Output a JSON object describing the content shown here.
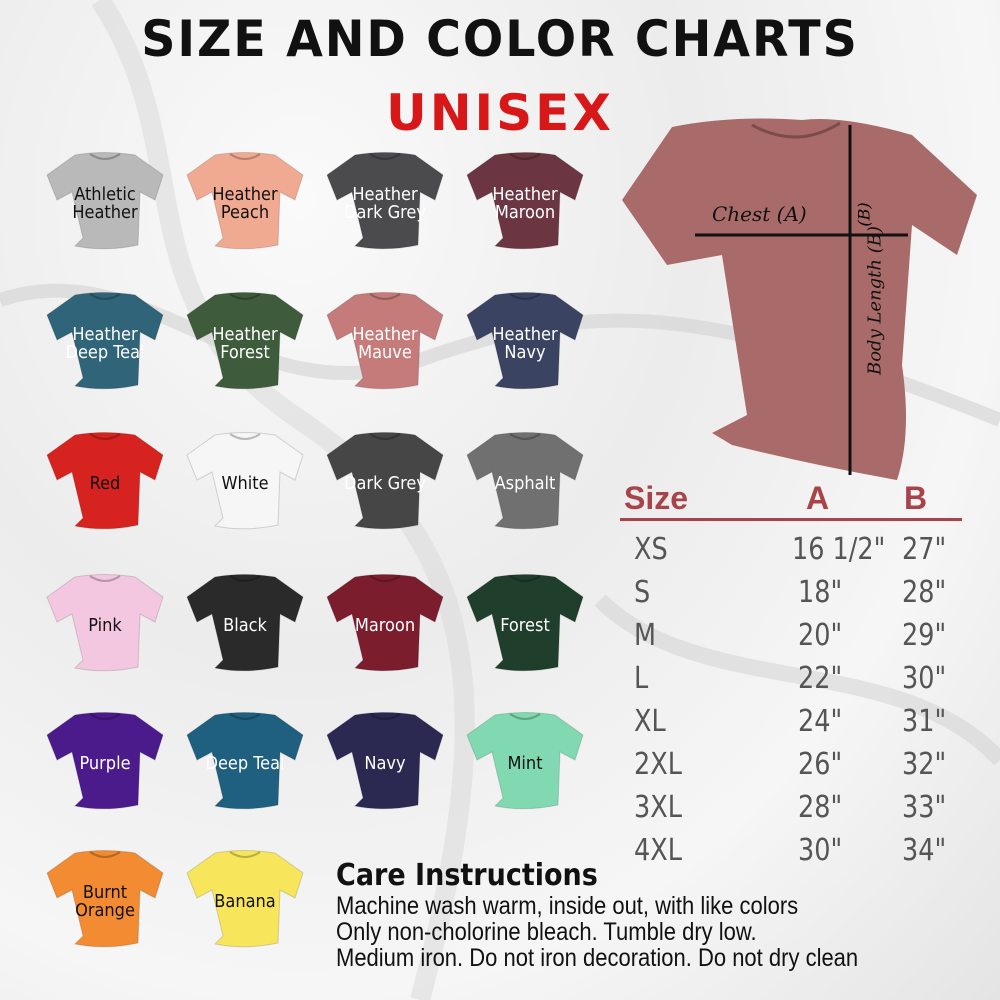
{
  "header": {
    "title": "SIZE AND COLOR CHARTS",
    "subtitle": "UNISEX"
  },
  "colors": [
    {
      "label": "Athletic Heather",
      "hex": "#b9b9b9",
      "text": "#111111"
    },
    {
      "label": "Heather Peach",
      "hex": "#f1aa92",
      "text": "#111111"
    },
    {
      "label": "Heather Dark Grey",
      "hex": "#4b4b4e",
      "text": "#ffffff"
    },
    {
      "label": "Heather Maroon",
      "hex": "#6b3542",
      "text": "#ffffff"
    },
    {
      "label": "Heather Deep Teal",
      "hex": "#2f6479",
      "text": "#ffffff"
    },
    {
      "label": "Heather Forest",
      "hex": "#3e5b3b",
      "text": "#ffffff"
    },
    {
      "label": "Heather Mauve",
      "hex": "#c57b79",
      "text": "#ffffff"
    },
    {
      "label": "Heather Navy",
      "hex": "#3b4362",
      "text": "#ffffff"
    },
    {
      "label": "Red",
      "hex": "#d7231f",
      "text": "#111111"
    },
    {
      "label": "White",
      "hex": "#f6f6f6",
      "text": "#111111"
    },
    {
      "label": "Dark Grey",
      "hex": "#464646",
      "text": "#ffffff"
    },
    {
      "label": "Asphalt",
      "hex": "#707070",
      "text": "#ffffff"
    },
    {
      "label": "Pink",
      "hex": "#f4c7e1",
      "text": "#111111"
    },
    {
      "label": "Black",
      "hex": "#2a2a2a",
      "text": "#ffffff"
    },
    {
      "label": "Maroon",
      "hex": "#7b1d2d",
      "text": "#ffffff"
    },
    {
      "label": "Forest",
      "hex": "#1f3e2b",
      "text": "#ffffff"
    },
    {
      "label": "Purple",
      "hex": "#4b1b8c",
      "text": "#ffffff"
    },
    {
      "label": "Deep Teal",
      "hex": "#1f5f7f",
      "text": "#ffffff"
    },
    {
      "label": "Navy",
      "hex": "#2b2952",
      "text": "#ffffff"
    },
    {
      "label": "Mint",
      "hex": "#80d9b1",
      "text": "#111111"
    },
    {
      "label": "Burnt Orange",
      "hex": "#f28b31",
      "text": "#111111"
    },
    {
      "label": "Banana",
      "hex": "#f7e65b",
      "text": "#111111"
    }
  ],
  "diagram": {
    "shirt_color": "#a86b69",
    "chest_label": "Chest (A)",
    "length_label": "Body Length (B)",
    "b_mark": "(B)"
  },
  "size_table": {
    "headers": [
      "Size",
      "A",
      "B"
    ],
    "accent": "#a8434a",
    "rows": [
      [
        "XS",
        "16 1/2\"",
        "27\""
      ],
      [
        "S",
        "18\"",
        "28\""
      ],
      [
        "M",
        "20\"",
        "29\""
      ],
      [
        "L",
        "22\"",
        "30\""
      ],
      [
        "XL",
        "24\"",
        "31\""
      ],
      [
        "2XL",
        "26\"",
        "32\""
      ],
      [
        "3XL",
        "28\"",
        "33\""
      ],
      [
        "4XL",
        "30\"",
        "34\""
      ]
    ]
  },
  "care": {
    "title": "Care Instructions",
    "lines": [
      "Machine wash warm, inside out, with like colors",
      "Only non-cholorine bleach. Tumble dry low.",
      "Medium iron. Do not iron decoration. Do not dry clean"
    ]
  }
}
